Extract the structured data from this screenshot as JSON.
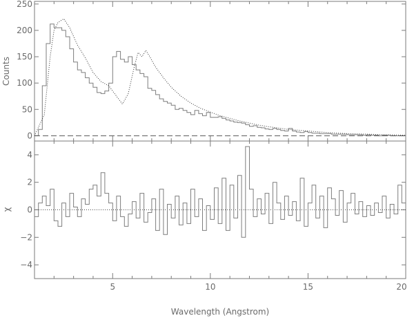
{
  "chart_data": [
    {
      "type": "line",
      "panel": "spectrum",
      "xlabel": "",
      "ylabel": "Counts",
      "xlim": [
        1.0,
        20.0
      ],
      "ylim": [
        -10,
        255
      ],
      "x_ticks": [
        5,
        10,
        15,
        20
      ],
      "y_ticks": [
        0,
        50,
        100,
        150,
        200,
        250
      ],
      "y_ticklabels": [
        "0",
        "50",
        "100",
        "150",
        "200",
        "250"
      ],
      "series": [
        {
          "style": "histogram",
          "x": [
            1.0,
            1.2,
            1.4,
            1.6,
            1.8,
            2.0,
            2.2,
            2.4,
            2.6,
            2.8,
            3.0,
            3.2,
            3.4,
            3.6,
            3.8,
            4.0,
            4.2,
            4.4,
            4.6,
            4.8,
            5.0,
            5.2,
            5.4,
            5.6,
            5.8,
            6.0,
            6.2,
            6.4,
            6.6,
            6.8,
            7.0,
            7.2,
            7.4,
            7.6,
            7.8,
            8.0,
            8.2,
            8.4,
            8.6,
            8.8,
            9.0,
            9.2,
            9.4,
            9.6,
            9.8,
            10.0,
            10.2,
            10.4,
            10.6,
            10.8,
            11.0,
            11.2,
            11.4,
            11.6,
            11.8,
            12.0,
            12.2,
            12.4,
            12.6,
            12.8,
            13.0,
            13.2,
            13.4,
            13.6,
            13.8,
            14.0,
            14.2,
            14.4,
            14.6,
            14.8,
            15.0,
            15.2,
            15.4,
            15.6,
            15.8,
            16.0,
            16.2,
            16.4,
            16.6,
            16.8,
            17.0,
            17.2,
            17.4,
            17.6,
            17.8,
            18.0,
            18.2,
            18.4,
            18.6,
            18.8,
            19.0,
            19.2,
            19.4,
            19.6,
            19.8
          ],
          "values": [
            0,
            12,
            95,
            175,
            212,
            205,
            205,
            200,
            188,
            165,
            140,
            125,
            120,
            110,
            100,
            92,
            82,
            80,
            85,
            100,
            150,
            160,
            145,
            140,
            150,
            135,
            125,
            118,
            112,
            90,
            86,
            78,
            70,
            65,
            62,
            58,
            50,
            52,
            48,
            44,
            40,
            48,
            42,
            38,
            44,
            35,
            35,
            36,
            33,
            30,
            28,
            26,
            25,
            24,
            21,
            18,
            19,
            16,
            15,
            13,
            12,
            14,
            12,
            10,
            9,
            14,
            9,
            7,
            6,
            8,
            6,
            5,
            5,
            4,
            4,
            4,
            3,
            3,
            3,
            3,
            2,
            2,
            2,
            2,
            1,
            2,
            1,
            1,
            0,
            1,
            1,
            0,
            0,
            0,
            0
          ]
        },
        {
          "style": "dotted-model",
          "x": [
            1.0,
            1.5,
            1.8,
            2.0,
            2.2,
            2.5,
            2.8,
            3.2,
            3.6,
            4.0,
            4.4,
            4.8,
            5.2,
            5.5,
            5.8,
            6.1,
            6.3,
            6.5,
            6.7,
            6.9,
            7.2,
            7.6,
            8.0,
            8.5,
            9.0,
            9.5,
            10.0,
            10.5,
            11.0,
            11.5,
            12.0,
            12.5,
            13.0,
            14.0,
            15.0,
            16.0,
            17.0,
            18.0,
            19.0,
            20.0
          ],
          "values": [
            0,
            40,
            150,
            200,
            215,
            222,
            205,
            172,
            148,
            120,
            103,
            95,
            75,
            60,
            80,
            130,
            158,
            150,
            162,
            150,
            130,
            110,
            92,
            75,
            62,
            52,
            45,
            38,
            33,
            28,
            24,
            20,
            17,
            12,
            9,
            6,
            4,
            3,
            2,
            1
          ]
        }
      ]
    },
    {
      "type": "line",
      "panel": "residuals",
      "xlabel": "Wavelength (Angstrom)",
      "ylabel": "χ",
      "xlim": [
        1.0,
        20.0
      ],
      "ylim": [
        -5,
        5
      ],
      "x_ticks": [
        5,
        10,
        15,
        20
      ],
      "x_ticklabels": [
        "5",
        "10",
        "15",
        "20"
      ],
      "y_ticks": [
        -4,
        -2,
        0,
        2,
        4
      ],
      "y_ticklabels": [
        "−4",
        "−2",
        "0",
        "2",
        "4"
      ],
      "series": [
        {
          "style": "histogram",
          "x": [
            1.0,
            1.2,
            1.4,
            1.6,
            1.8,
            2.0,
            2.2,
            2.4,
            2.6,
            2.8,
            3.0,
            3.2,
            3.4,
            3.6,
            3.8,
            4.0,
            4.2,
            4.4,
            4.6,
            4.8,
            5.0,
            5.2,
            5.4,
            5.6,
            5.8,
            6.0,
            6.2,
            6.4,
            6.6,
            6.8,
            7.0,
            7.2,
            7.4,
            7.6,
            7.8,
            8.0,
            8.2,
            8.4,
            8.6,
            8.8,
            9.0,
            9.2,
            9.4,
            9.6,
            9.8,
            10.0,
            10.2,
            10.4,
            10.6,
            10.8,
            11.0,
            11.2,
            11.4,
            11.6,
            11.8,
            12.0,
            12.2,
            12.4,
            12.6,
            12.8,
            13.0,
            13.2,
            13.4,
            13.6,
            13.8,
            14.0,
            14.2,
            14.4,
            14.6,
            14.8,
            15.0,
            15.2,
            15.4,
            15.6,
            15.8,
            16.0,
            16.2,
            16.4,
            16.6,
            16.8,
            17.0,
            17.2,
            17.4,
            17.6,
            17.8,
            18.0,
            18.2,
            18.4,
            18.6,
            18.8,
            19.0,
            19.2,
            19.4,
            19.6,
            19.8
          ],
          "values": [
            -0.5,
            0.5,
            1.0,
            0.3,
            1.5,
            -0.8,
            -1.2,
            0.5,
            -0.5,
            1.2,
            0.2,
            -0.5,
            0.8,
            0.4,
            1.5,
            1.8,
            1.0,
            2.7,
            1.2,
            0.5,
            -0.8,
            1.0,
            -0.5,
            -1.2,
            -0.3,
            0.6,
            -0.6,
            1.2,
            -0.9,
            -0.2,
            0.8,
            -1.5,
            1.5,
            -1.8,
            0.4,
            -0.6,
            1.0,
            -1.1,
            0.5,
            -1.0,
            1.5,
            -0.5,
            0.8,
            -1.5,
            0.3,
            -0.7,
            1.6,
            -1.0,
            2.3,
            -1.5,
            1.8,
            -0.6,
            2.5,
            -2.0,
            4.6,
            1.5,
            -0.5,
            0.8,
            -0.3,
            1.2,
            -1.0,
            2.0,
            0.5,
            -0.7,
            1.0,
            -0.4,
            0.6,
            -0.8,
            2.3,
            -1.2,
            0.5,
            1.8,
            -0.6,
            1.0,
            -1.3,
            1.6,
            0.8,
            -0.4,
            1.4,
            -0.9,
            0.5,
            1.2,
            -0.3,
            0.6,
            -0.5,
            0.3,
            -0.4,
            0.5,
            -0.2,
            1.0,
            -0.6,
            0.4,
            -0.3,
            1.8,
            0.5
          ]
        }
      ],
      "reference_line": 0
    }
  ]
}
